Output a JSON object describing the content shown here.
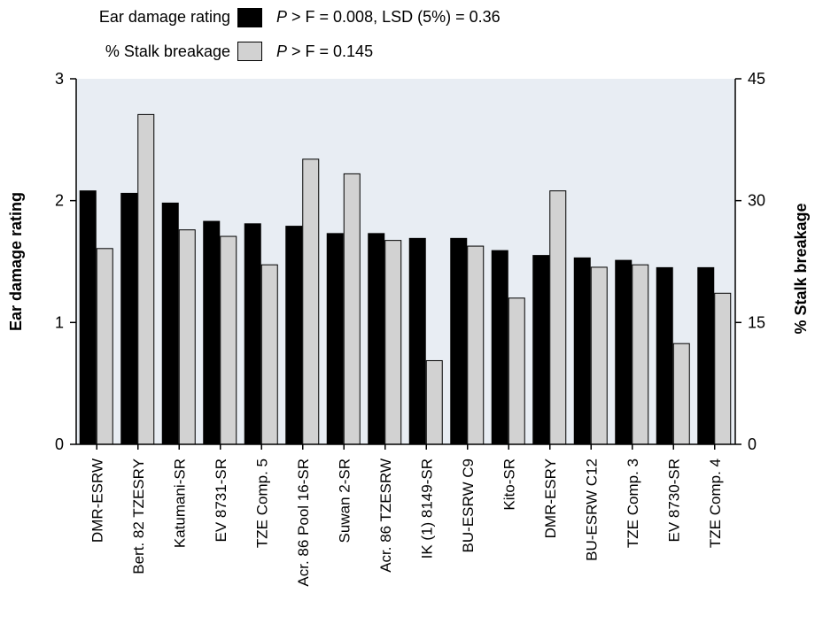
{
  "legend": {
    "items": [
      {
        "label": "Ear damage rating",
        "stat_prefix": "P",
        "stat_text": " > F = 0.008, LSD (5%) = 0.36",
        "color": "#000000"
      },
      {
        "label": "% Stalk breakage",
        "stat_prefix": "P",
        "stat_text": " > F = 0.145",
        "color": "#d2d2d2"
      }
    ]
  },
  "chart_data": {
    "type": "bar",
    "categories": [
      "DMR-ESRW",
      "Bert. 82 TZESRY",
      "Katumani-SR",
      "EV 8731-SR",
      "TZE Comp. 5",
      "Acr. 86 Pool 16-SR",
      "Suwan 2-SR",
      "Acr. 86 TZESRW",
      "IK (1) 8149-SR",
      "BU-ESRW C9",
      "Kito-SR",
      "DMR-ESRY",
      "BU-ESRW C12",
      "TZE Comp. 3",
      "EV 8730-SR",
      "TZE Comp. 4"
    ],
    "series": [
      {
        "name": "Ear damage rating",
        "axis": "left",
        "color": "#000000",
        "values": [
          2.08,
          2.06,
          1.98,
          1.83,
          1.81,
          1.79,
          1.73,
          1.73,
          1.69,
          1.69,
          1.59,
          1.55,
          1.53,
          1.51,
          1.45,
          1.45
        ]
      },
      {
        "name": "% Stalk breakage",
        "axis": "right",
        "color": "#d2d2d2",
        "values": [
          24.1,
          40.6,
          26.4,
          25.6,
          22.1,
          35.1,
          33.3,
          25.1,
          10.3,
          24.4,
          18.0,
          31.2,
          21.8,
          22.1,
          12.4,
          18.6
        ]
      }
    ],
    "ylabel": "Ear damage rating",
    "ylim": [
      0,
      3
    ],
    "yticks": [
      "0",
      "1",
      "2",
      "3"
    ],
    "y2label": "% Stalk breakage",
    "y2lim": [
      0,
      45
    ],
    "y2ticks": [
      "0",
      "15",
      "30",
      "45"
    ],
    "grid": false,
    "legend_position": "top-left"
  }
}
